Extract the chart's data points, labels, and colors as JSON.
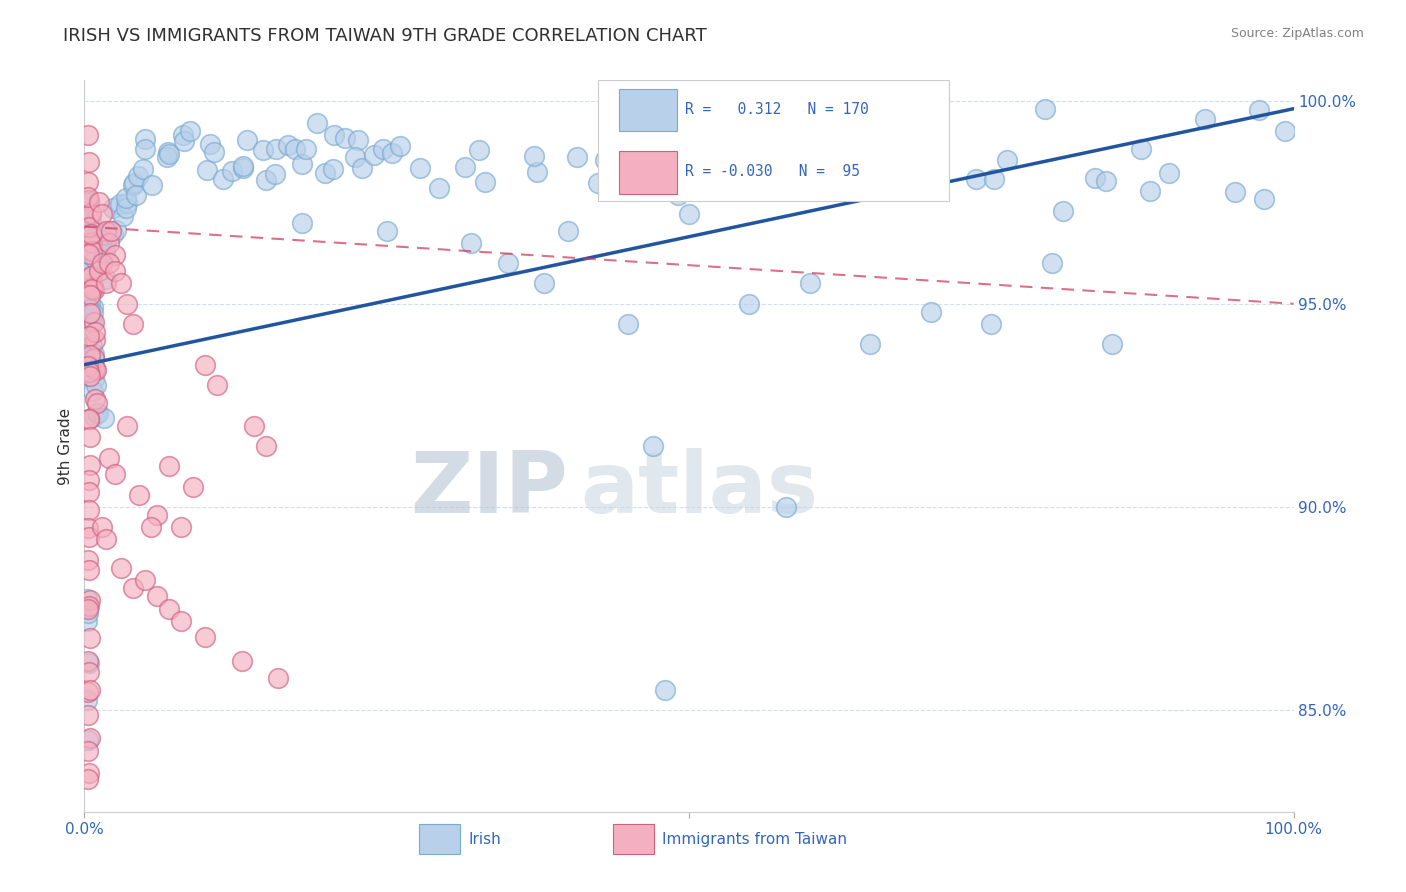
{
  "title": "IRISH VS IMMIGRANTS FROM TAIWAN 9TH GRADE CORRELATION CHART",
  "source_text": "Source: ZipAtlas.com",
  "ylabel": "9th Grade",
  "x_range": [
    0.0,
    1.0
  ],
  "y_range": [
    0.825,
    1.005
  ],
  "irish_color_fill": "#b8d0ea",
  "irish_color_edge": "#7aaad0",
  "irish_line_color": "#2255a0",
  "taiwan_color_fill": "#f4b0c0",
  "taiwan_color_edge": "#d06080",
  "taiwan_line_color": "#d04060",
  "legend_R_irish": "0.312",
  "legend_N_irish": "170",
  "legend_R_taiwan": "-0.030",
  "legend_N_taiwan": "95",
  "watermark_zip": "ZIP",
  "watermark_atlas": "atlas",
  "watermark_color": "#ccd8e8",
  "title_color": "#303030",
  "tick_label_color": "#3366bb",
  "source_color": "#808080",
  "y_ticks": [
    0.85,
    0.9,
    0.95,
    1.0
  ],
  "y_tick_labels": [
    "85.0%",
    "90.0%",
    "95.0%",
    "100.0%"
  ],
  "irish_trendline_x": [
    0.0,
    1.0
  ],
  "irish_trendline_y": [
    0.935,
    0.998
  ],
  "taiwan_trendline_x": [
    0.0,
    1.0
  ],
  "taiwan_trendline_y": [
    0.969,
    0.95
  ]
}
